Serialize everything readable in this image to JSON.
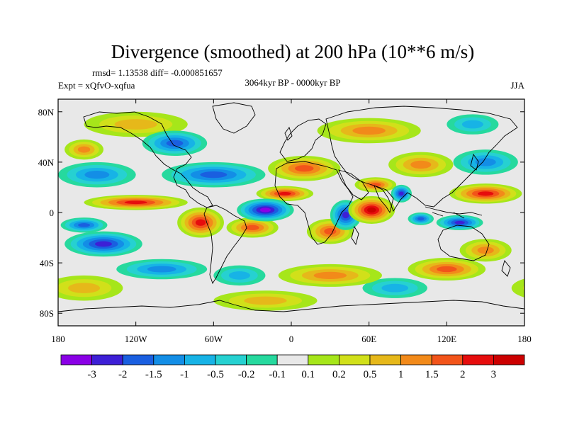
{
  "chart_data": {
    "type": "heatmap",
    "title": "Divergence (smoothed) at 200 hPa (10**6 m/s)",
    "stats_line": "rmsd= 1.13538 diff= -0.000851657",
    "subtitle": "3064kyr BP - 0000kyr BP",
    "left_label": "Expt = xQfvO-xqfua",
    "right_label": "JJA",
    "x_ticks": [
      "180",
      "120W",
      "60W",
      "0",
      "60E",
      "120E",
      "180"
    ],
    "x_tick_values": [
      -180,
      -120,
      -60,
      0,
      60,
      120,
      180
    ],
    "y_ticks": [
      "80N",
      "40N",
      "0",
      "40S",
      "80S"
    ],
    "y_tick_values": [
      80,
      40,
      0,
      -40,
      -80
    ],
    "xlim": [
      -180,
      180
    ],
    "ylim": [
      -90,
      90
    ],
    "colorbar": {
      "labels": [
        "-3",
        "-2",
        "-1.5",
        "-1",
        "-0.5",
        "-0.2",
        "-0.1",
        "0.1",
        "0.2",
        "0.5",
        "1",
        "1.5",
        "2",
        "3"
      ],
      "colors": [
        "#8a00e6",
        "#3d1fd6",
        "#1a5fe0",
        "#138ee6",
        "#17b3e6",
        "#26d1d1",
        "#26d99e",
        "#e8e8e8",
        "#a6e61a",
        "#d1e01a",
        "#e6b81a",
        "#f28a1a",
        "#f2541a",
        "#e60d0d",
        "#cc0000"
      ]
    },
    "anomaly_centers": [
      {
        "lon": -20,
        "lat": 2,
        "value": -3.2,
        "rx": 22,
        "ry": 9
      },
      {
        "lon": 42,
        "lat": -2,
        "value": -2.5,
        "rx": 12,
        "ry": 12
      },
      {
        "lon": 62,
        "lat": 2,
        "value": 3.2,
        "rx": 18,
        "ry": 11
      },
      {
        "lon": 85,
        "lat": 15,
        "value": -2.2,
        "rx": 8,
        "ry": 7
      },
      {
        "lon": -5,
        "lat": 15,
        "value": 2.0,
        "rx": 22,
        "ry": 6
      },
      {
        "lon": 65,
        "lat": 22,
        "value": 1.6,
        "rx": 16,
        "ry": 6
      },
      {
        "lon": 150,
        "lat": 15,
        "value": 2.4,
        "rx": 28,
        "ry": 8
      },
      {
        "lon": 130,
        "lat": -8,
        "value": -2.4,
        "rx": 18,
        "ry": 6
      },
      {
        "lon": 100,
        "lat": -5,
        "value": -1.8,
        "rx": 10,
        "ry": 5
      },
      {
        "lon": -145,
        "lat": -25,
        "value": -2.6,
        "rx": 30,
        "ry": 10
      },
      {
        "lon": -160,
        "lat": -10,
        "value": -1.5,
        "rx": 18,
        "ry": 6
      },
      {
        "lon": -120,
        "lat": 8,
        "value": 2.2,
        "rx": 40,
        "ry": 6
      },
      {
        "lon": -70,
        "lat": -8,
        "value": 2.2,
        "rx": 18,
        "ry": 12
      },
      {
        "lon": -30,
        "lat": -12,
        "value": 1.8,
        "rx": 20,
        "ry": 8
      },
      {
        "lon": 30,
        "lat": -15,
        "value": 1.5,
        "rx": 18,
        "ry": 10
      },
      {
        "lon": -150,
        "lat": 30,
        "value": -1.3,
        "rx": 30,
        "ry": 10
      },
      {
        "lon": -60,
        "lat": 30,
        "value": -1.8,
        "rx": 40,
        "ry": 10
      },
      {
        "lon": 10,
        "lat": 35,
        "value": 1.6,
        "rx": 28,
        "ry": 10
      },
      {
        "lon": 100,
        "lat": 38,
        "value": 1.4,
        "rx": 25,
        "ry": 10
      },
      {
        "lon": 150,
        "lat": 40,
        "value": -1.4,
        "rx": 25,
        "ry": 10
      },
      {
        "lon": -90,
        "lat": 55,
        "value": -1.5,
        "rx": 25,
        "ry": 10
      },
      {
        "lon": 60,
        "lat": 65,
        "value": 1.0,
        "rx": 40,
        "ry": 10
      },
      {
        "lon": -120,
        "lat": 70,
        "value": 0.8,
        "rx": 40,
        "ry": 10
      },
      {
        "lon": 140,
        "lat": 70,
        "value": -0.8,
        "rx": 20,
        "ry": 8
      },
      {
        "lon": -100,
        "lat": -45,
        "value": -1.4,
        "rx": 35,
        "ry": 8
      },
      {
        "lon": 30,
        "lat": -50,
        "value": 1.2,
        "rx": 40,
        "ry": 9
      },
      {
        "lon": 120,
        "lat": -45,
        "value": 1.5,
        "rx": 30,
        "ry": 9
      },
      {
        "lon": 150,
        "lat": -30,
        "value": 1.3,
        "rx": 20,
        "ry": 9
      },
      {
        "lon": -160,
        "lat": -60,
        "value": 0.6,
        "rx": 30,
        "ry": 10
      },
      {
        "lon": -20,
        "lat": -70,
        "value": 0.7,
        "rx": 40,
        "ry": 8
      },
      {
        "lon": -40,
        "lat": -50,
        "value": -0.8,
        "rx": 20,
        "ry": 8
      },
      {
        "lon": 80,
        "lat": -60,
        "value": -0.6,
        "rx": 25,
        "ry": 8
      },
      {
        "lon": -160,
        "lat": 50,
        "value": 1.0,
        "rx": 15,
        "ry": 8
      }
    ]
  }
}
